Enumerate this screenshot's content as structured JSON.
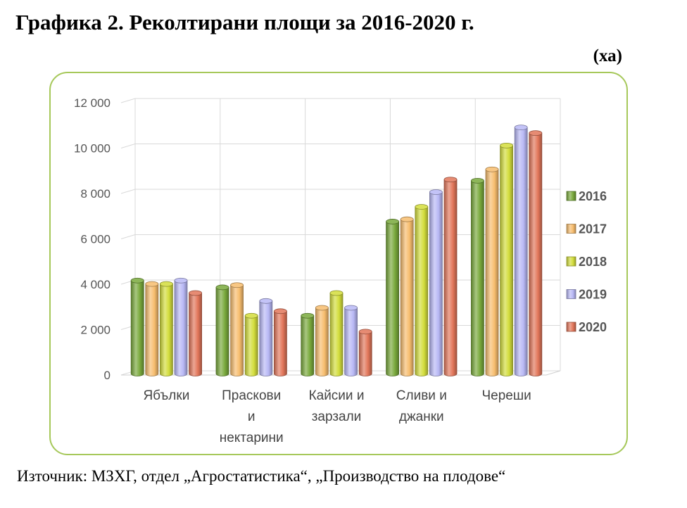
{
  "title": "Графика 2. Реколтирани площи за 2016-2020 г.",
  "unit": "(ха)",
  "source": "Източник: МЗХГ, отдел „Агростатистика“, „Производство на плодове“",
  "chart_data": {
    "type": "bar",
    "categories": [
      [
        "Ябълки"
      ],
      [
        "Праскови",
        "и",
        "нектарини"
      ],
      [
        "Кайсии и",
        "зарзали"
      ],
      [
        "Сливи и",
        "джанки"
      ],
      [
        "Череши"
      ]
    ],
    "series": [
      {
        "name": "2016",
        "color": "#79a93c",
        "values": [
          4100,
          3800,
          2550,
          6700,
          8500
        ]
      },
      {
        "name": "2017",
        "color": "#f7bd6e",
        "values": [
          3950,
          3900,
          2900,
          6800,
          9000
        ]
      },
      {
        "name": "2018",
        "color": "#d3dd3c",
        "values": [
          3950,
          2550,
          3550,
          7350,
          10050
        ]
      },
      {
        "name": "2019",
        "color": "#b8b8f5",
        "values": [
          4100,
          3200,
          2900,
          8000,
          10850
        ]
      },
      {
        "name": "2020",
        "color": "#e2765a",
        "values": [
          3550,
          2750,
          1850,
          8550,
          10600
        ]
      }
    ],
    "yticks": [
      "0",
      "2 000",
      "4 000",
      "6 000",
      "8 000",
      "10 000",
      "12 000"
    ],
    "ylim": [
      0,
      12000
    ],
    "grid": true,
    "legend_position": "right"
  }
}
